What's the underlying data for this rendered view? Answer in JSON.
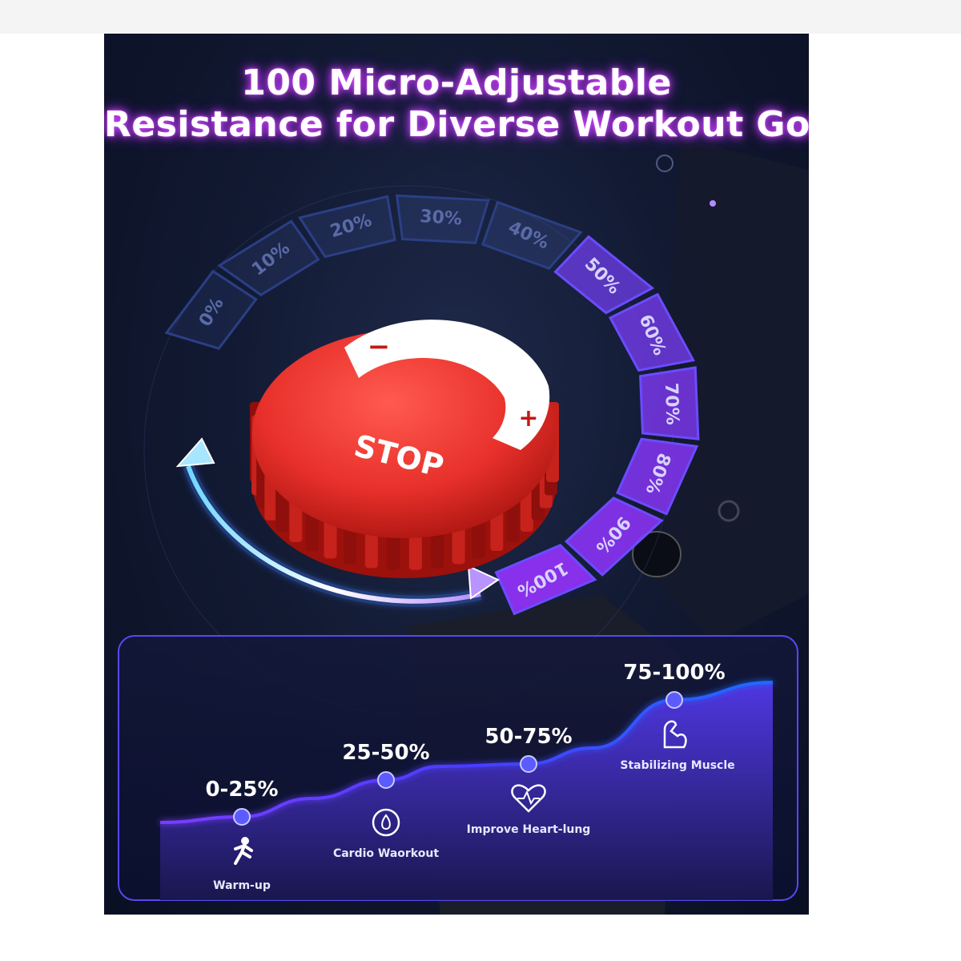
{
  "title": {
    "line1": "100 Micro-Adjustable",
    "line2": "Resistance for Diverse Workout Goals"
  },
  "knob": {
    "label": "STOP",
    "minus": "−",
    "plus": "+",
    "color": "#e8302b"
  },
  "dial_segments": [
    "0%",
    "10%",
    "20%",
    "30%",
    "40%",
    "50%",
    "60%",
    "70%",
    "80%",
    "90%",
    "100%"
  ],
  "levels": [
    {
      "range": "0-25%",
      "caption": "Warm-up",
      "icon": "running-person-icon"
    },
    {
      "range": "25-50%",
      "caption": "Cardio Waorkout",
      "icon": "sweat-drop-timer-icon"
    },
    {
      "range": "50-75%",
      "caption": "Improve Heart-lung",
      "icon": "heart-pulse-icon"
    },
    {
      "range": "75-100%",
      "caption": "Stabilizing Muscle",
      "icon": "flexed-arm-icon"
    }
  ],
  "colors": {
    "accent_purple": "#8a3cff",
    "accent_blue": "#2f5bff",
    "glow_pink": "#d14bff",
    "dot": "#5b5bff"
  }
}
